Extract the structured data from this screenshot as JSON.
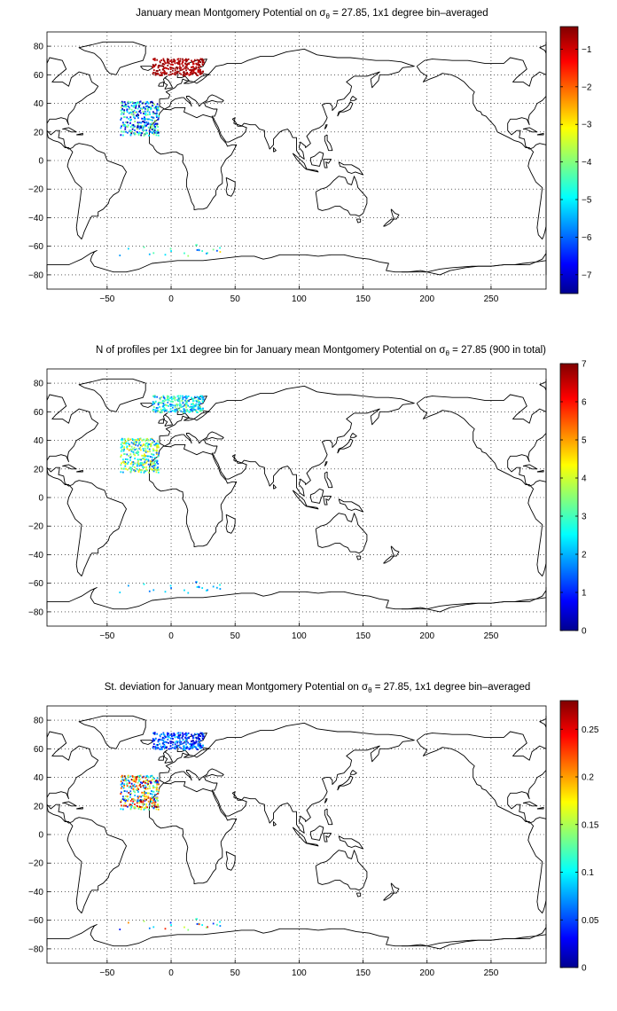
{
  "figure": {
    "panels": [
      {
        "title_pre": "January mean Montgomery Potential on ",
        "title_sym": "σ",
        "title_sub": "θ",
        "title_post": " = 27.85, 1x1 degree bin–averaged",
        "colorbar": {
          "min": -7.5,
          "max": -0.4,
          "ticks": [
            -1,
            -2,
            -3,
            -4,
            -5,
            -6,
            -7
          ]
        }
      },
      {
        "title_pre": "N of profiles per 1x1 degree bin for January mean Montgomery Potential on ",
        "title_sym": "σ",
        "title_sub": "θ",
        "title_post": " = 27.85 (900 in total)",
        "colorbar": {
          "min": 0,
          "max": 7,
          "ticks": [
            0,
            1,
            2,
            3,
            4,
            5,
            6,
            7
          ]
        }
      },
      {
        "title_pre": "St. deviation for January mean Montgomery Potential on ",
        "title_sym": "σ",
        "title_sub": "θ",
        "title_post": " = 27.85, 1x1 degree bin–averaged",
        "colorbar": {
          "min": 0,
          "max": 0.28,
          "ticks": [
            0,
            0.05,
            0.1,
            0.15,
            0.2,
            0.25
          ]
        }
      }
    ],
    "axes": {
      "xlim": [
        -97,
        293
      ],
      "ylim": [
        -90,
        90
      ],
      "xticks": [
        -50,
        0,
        50,
        100,
        150,
        200,
        250
      ],
      "yticks": [
        -80,
        -60,
        -40,
        -20,
        0,
        20,
        40,
        60,
        80
      ],
      "grid": true
    },
    "colormap": "jet"
  }
}
